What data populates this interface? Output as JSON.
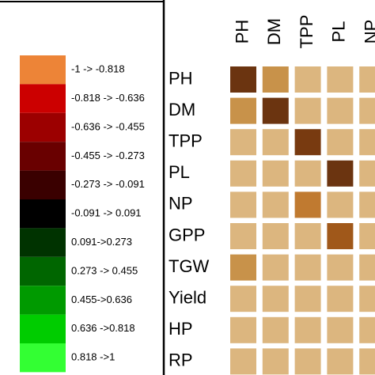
{
  "chart_data": {
    "type": "heatmap",
    "legend": [
      {
        "label": "-1 -> -0.818",
        "color": "#ed8437"
      },
      {
        "label": "-0.818 -> -0.636",
        "color": "#cc0000"
      },
      {
        "label": "-0.636 -> -0.455",
        "color": "#9c0000"
      },
      {
        "label": "-0.455 -> -0.273",
        "color": "#690000"
      },
      {
        "label": "-0.273 -> -0.091",
        "color": "#3a0000"
      },
      {
        "label": "-0.091 -> 0.091",
        "color": "#000000"
      },
      {
        "label": "0.091->0.273",
        "color": "#003300"
      },
      {
        "label": "0.273 -> 0.455",
        "color": "#006600"
      },
      {
        "label": "0.455->0.636",
        "color": "#009a00"
      },
      {
        "label": "0.636 ->0.818",
        "color": "#00cc00"
      },
      {
        "label": "0.818 ->1",
        "color": "#33ff33"
      }
    ],
    "rows": [
      "PH",
      "DM",
      "TPP",
      "PL",
      "NP",
      "GPP",
      "TGW",
      "Yield",
      "HP",
      "RP"
    ],
    "columns": [
      "PH",
      "DM",
      "TPP",
      "PL",
      "NP"
    ],
    "cell_colors": [
      [
        "#6b3410",
        "#c8924a",
        "#dcb67f",
        "#dcb67f",
        "#dcb67f"
      ],
      [
        "#c8924a",
        "#6b3410",
        "#dcb67f",
        "#dcb67f",
        "#dcb67f"
      ],
      [
        "#dcb67f",
        "#dcb67f",
        "#783a10",
        "#dcb67f",
        "#dcb67f"
      ],
      [
        "#dcb67f",
        "#dcb67f",
        "#dcb67f",
        "#6b3410",
        "#dcb67f"
      ],
      [
        "#dcb67f",
        "#dcb67f",
        "#c07a30",
        "#dcb67f",
        "#dcb67f"
      ],
      [
        "#dcb67f",
        "#dcb67f",
        "#dcb67f",
        "#a0581a",
        "#dcb67f"
      ],
      [
        "#c8924a",
        "#dcb67f",
        "#dcb67f",
        "#dcb67f",
        "#dcb67f"
      ],
      [
        "#dcb67f",
        "#dcb67f",
        "#dcb67f",
        "#dcb67f",
        "#dcb67f"
      ],
      [
        "#dcb67f",
        "#dcb67f",
        "#dcb67f",
        "#dcb67f",
        "#dcb67f"
      ],
      [
        "#dcb67f",
        "#dcb67f",
        "#dcb67f",
        "#dcb67f",
        "#dcb67f"
      ]
    ]
  }
}
